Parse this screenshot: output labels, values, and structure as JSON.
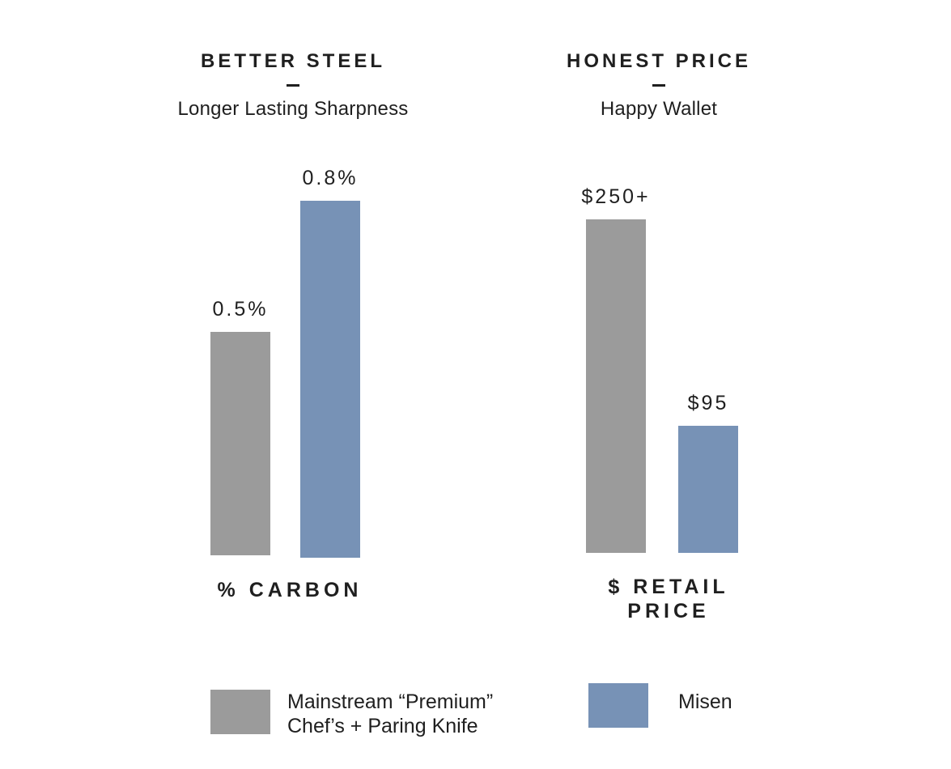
{
  "colors": {
    "mainstream": "#9b9b9b",
    "misen": "#7792b6"
  },
  "chart_data": [
    {
      "type": "bar",
      "title": "BETTER STEEL",
      "subtitle": "Longer Lasting Sharpness",
      "xlabel": "% CARBON",
      "ylabel": "",
      "series": [
        {
          "name": "Mainstream “Premium” Chef’s + Paring Knife",
          "values": [
            0.5
          ],
          "labels": [
            "0.5%"
          ]
        },
        {
          "name": "Misen",
          "values": [
            0.8
          ],
          "labels": [
            "0.8%"
          ]
        }
      ],
      "ylim": [
        0,
        0.8
      ]
    },
    {
      "type": "bar",
      "title": "HONEST PRICE",
      "subtitle": "Happy Wallet",
      "xlabel": "$ RETAIL PRICE",
      "ylabel": "",
      "series": [
        {
          "name": "Mainstream “Premium” Chef’s + Paring Knife",
          "values": [
            250
          ],
          "labels": [
            "$250+"
          ]
        },
        {
          "name": "Misen",
          "values": [
            95
          ],
          "labels": [
            "$95"
          ]
        }
      ],
      "ylim": [
        0,
        250
      ]
    }
  ],
  "legend": {
    "mainstream_line1": "Mainstream “Premium”",
    "mainstream_line2": "Chef’s + Paring Knife",
    "misen": "Misen"
  },
  "price_axis_line1": "$ RETAIL",
  "price_axis_line2": "PRICE"
}
